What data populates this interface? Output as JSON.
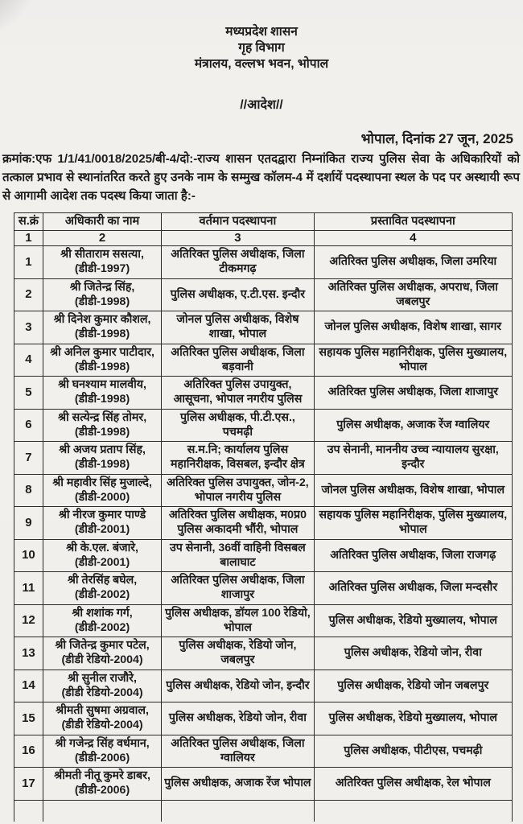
{
  "document": {
    "header": {
      "line1": "मध्यप्रदेश शासन",
      "line2": "गृह विभाग",
      "line3": "मंत्रालय, वल्लभ भवन, भोपाल"
    },
    "order_title": "//आदेश//",
    "place_date": "भोपाल, दिनांक 27 जून, 2025",
    "intro": "क्रमांक:एफ 1/1/41/0018/2025/बी-4/दो:-राज्य शासन एतदद्वारा निम्नांकित राज्य पुलिस सेवा के अधिकारियों को तत्काल प्रभाव से स्थानांतरित करते हुए उनके नाम के सम्मुख कॉलम-4 में दर्शायें पदस्थापना स्थल के पद पर अस्थायी रूप से आगामी आदेश तक पदस्थ किया जाता है:-"
  },
  "table": {
    "col_headers": [
      "स.क्रं",
      "अधिकारी का नाम",
      "वर्तमान पदस्थापना",
      "प्रस्तावित पदस्थापना"
    ],
    "col_numbers": [
      "1",
      "2",
      "3",
      "4"
    ],
    "rows": [
      {
        "sno": "1",
        "name": "श्री सीताराम ससत्या,",
        "batch": "(डीडी-1997)",
        "current": "अतिरिक्त पुलिस अधीक्षक, जिला टीकमगढ़",
        "proposed": "अतिरिक्त पुलिस अधीक्षक, जिला उमरिया"
      },
      {
        "sno": "2",
        "name": "श्री जितेन्द्र सिंह,",
        "batch": "(डीडी-1998)",
        "current": "पुलिस अधीक्षक, ए.टी.एस. इन्दौर",
        "proposed": "अतिरिक्त पुलिस अधीक्षक, अपराध, जिला जबलपुर"
      },
      {
        "sno": "3",
        "name": "श्री दिनेश कुमार कौशल,",
        "batch": "(डीडी-1998)",
        "current": "जोनल पुलिस अधीक्षक, विशेष शाखा, भोपाल",
        "proposed": "जोनल पुलिस अधीक्षक, विशेष शाखा, सागर"
      },
      {
        "sno": "4",
        "name": "श्री अनिल कुमार पाटीदार,",
        "batch": "(डीडी-1998)",
        "current": "अतिरिक्त पुलिस अधीक्षक, जिला बड़वानी",
        "proposed": "सहायक पुलिस महानिरीक्षक, पुलिस मुख्यालय, भोपाल"
      },
      {
        "sno": "5",
        "name": "श्री घनश्याम मालवीय,",
        "batch": "(डीडी-1998)",
        "current": "अतिरिक्त पुलिस उपायुक्त, आसूचना, भोपाल नगरीय पुलिस",
        "proposed": "अतिरिक्त पुलिस अधीक्षक, जिला शाजापुर"
      },
      {
        "sno": "6",
        "name": "श्री सत्येन्द्र सिंह तोमर,",
        "batch": "(डीडी-1998)",
        "current": "पुलिस अधीक्षक, पी.टी.एस., पचमढ़ी",
        "proposed": "पुलिस अधीक्षक, अजाक रेंज ग्वालियर"
      },
      {
        "sno": "7",
        "name": "श्री अजय प्रताप सिंह,",
        "batch": "(डीडी-1998)",
        "current": "स.म.नि; कार्यालय पुलिस महानिरीक्षक, विसबल, इन्दौर क्षेत्र",
        "proposed": "उप सेनानी, माननीय उच्च न्यायालय सुरक्षा, इन्दौर"
      },
      {
        "sno": "8",
        "name": "श्री महावीर सिंह मुजाल्दे,",
        "batch": "(डीडी-2000)",
        "current": "अतिरिक्त पुलिस उपायुक्त, जोन-2, भोपाल नगरीय पुलिस",
        "proposed": "जोनल पुलिस अधीक्षक, विशेष शाखा, भोपाल"
      },
      {
        "sno": "9",
        "name": "श्री नीरज कुमार पाण्डे",
        "batch": "(डीडी-2001)",
        "current": "अतिरिक्त पुलिस अधीक्षक, म0प्र0 पुलिस अकादमी भौंरी, भोपाल",
        "proposed": "सहायक पुलिस महानिरीक्षक, पुलिस मुख्यालय, भोपाल"
      },
      {
        "sno": "10",
        "name": "श्री के.एल. बंजारे,",
        "batch": "(डीडी-2001)",
        "current": "उप सेनानी, 36वीं वाहिनी विसबल बालाघाट",
        "proposed": "अतिरिक्त पुलिस अधीक्षक, जिला राजगढ़"
      },
      {
        "sno": "11",
        "name": "श्री तेरसिंह बघेल,",
        "batch": "(डीडी-2002)",
        "current": "अतिरिक्त पुलिस अधीक्षक, जिला शाजापुर",
        "proposed": "अतिरिक्त पुलिस अधीक्षक, जिला मन्दसौर"
      },
      {
        "sno": "12",
        "name": "श्री शशांक गर्ग,",
        "batch": "(डीडी-2002)",
        "current": "पुलिस अधीक्षक, डॉयल 100 रेडियो, भोपाल",
        "proposed": "पुलिस अधीक्षक, रेडियो मुख्यालय, भोपाल"
      },
      {
        "sno": "13",
        "name": "श्री जितेन्द्र कुमार पटेल,",
        "batch": "(डीडी रेडियो-2004)",
        "current": "पुलिस अधीक्षक, रेडियो जोन, जबलपुर",
        "proposed": "पुलिस अधीक्षक, रेडियो जोन, रीवा"
      },
      {
        "sno": "14",
        "name": "श्री सुनील राजौरे,",
        "batch": "(डीडी रेडियो-2004)",
        "current": "पुलिस अधीक्षक, रेडियो जोन, इन्दौर",
        "proposed": "पुलिस अधीक्षक, रेडियो जोन जबलपुर"
      },
      {
        "sno": "15",
        "name": "श्रीमती सुषमा अग्रवाल,",
        "batch": "(डीडी रेडियो-2004)",
        "current": "पुलिस अधीक्षक, रेडियो जोन, रीवा",
        "proposed": "पुलिस अधीक्षक, रेडियो मुख्यालय, भोपाल"
      },
      {
        "sno": "16",
        "name": "श्री गजेन्द्र सिंह वर्धमान,",
        "batch": "(डीडी-2006)",
        "current": "अतिरिक्त पुलिस अधीक्षक, जिला ग्वालियर",
        "proposed": "पुलिस अधीक्षक, पीटीएस, पचमढ़ी"
      },
      {
        "sno": "17",
        "name": "श्रीमती नीतू कुमरे डाबर,",
        "batch": "(डीडी-2006)",
        "current": "पुलिस अधीक्षक, अजाक रेंज भोपाल",
        "proposed": "अतिरिक्त पुलिस अधीक्षक, रेल भोपाल"
      }
    ]
  },
  "colors": {
    "page_background": "#f1efec",
    "text": "#1c1c1c",
    "table_border": "#2c2c2c"
  }
}
